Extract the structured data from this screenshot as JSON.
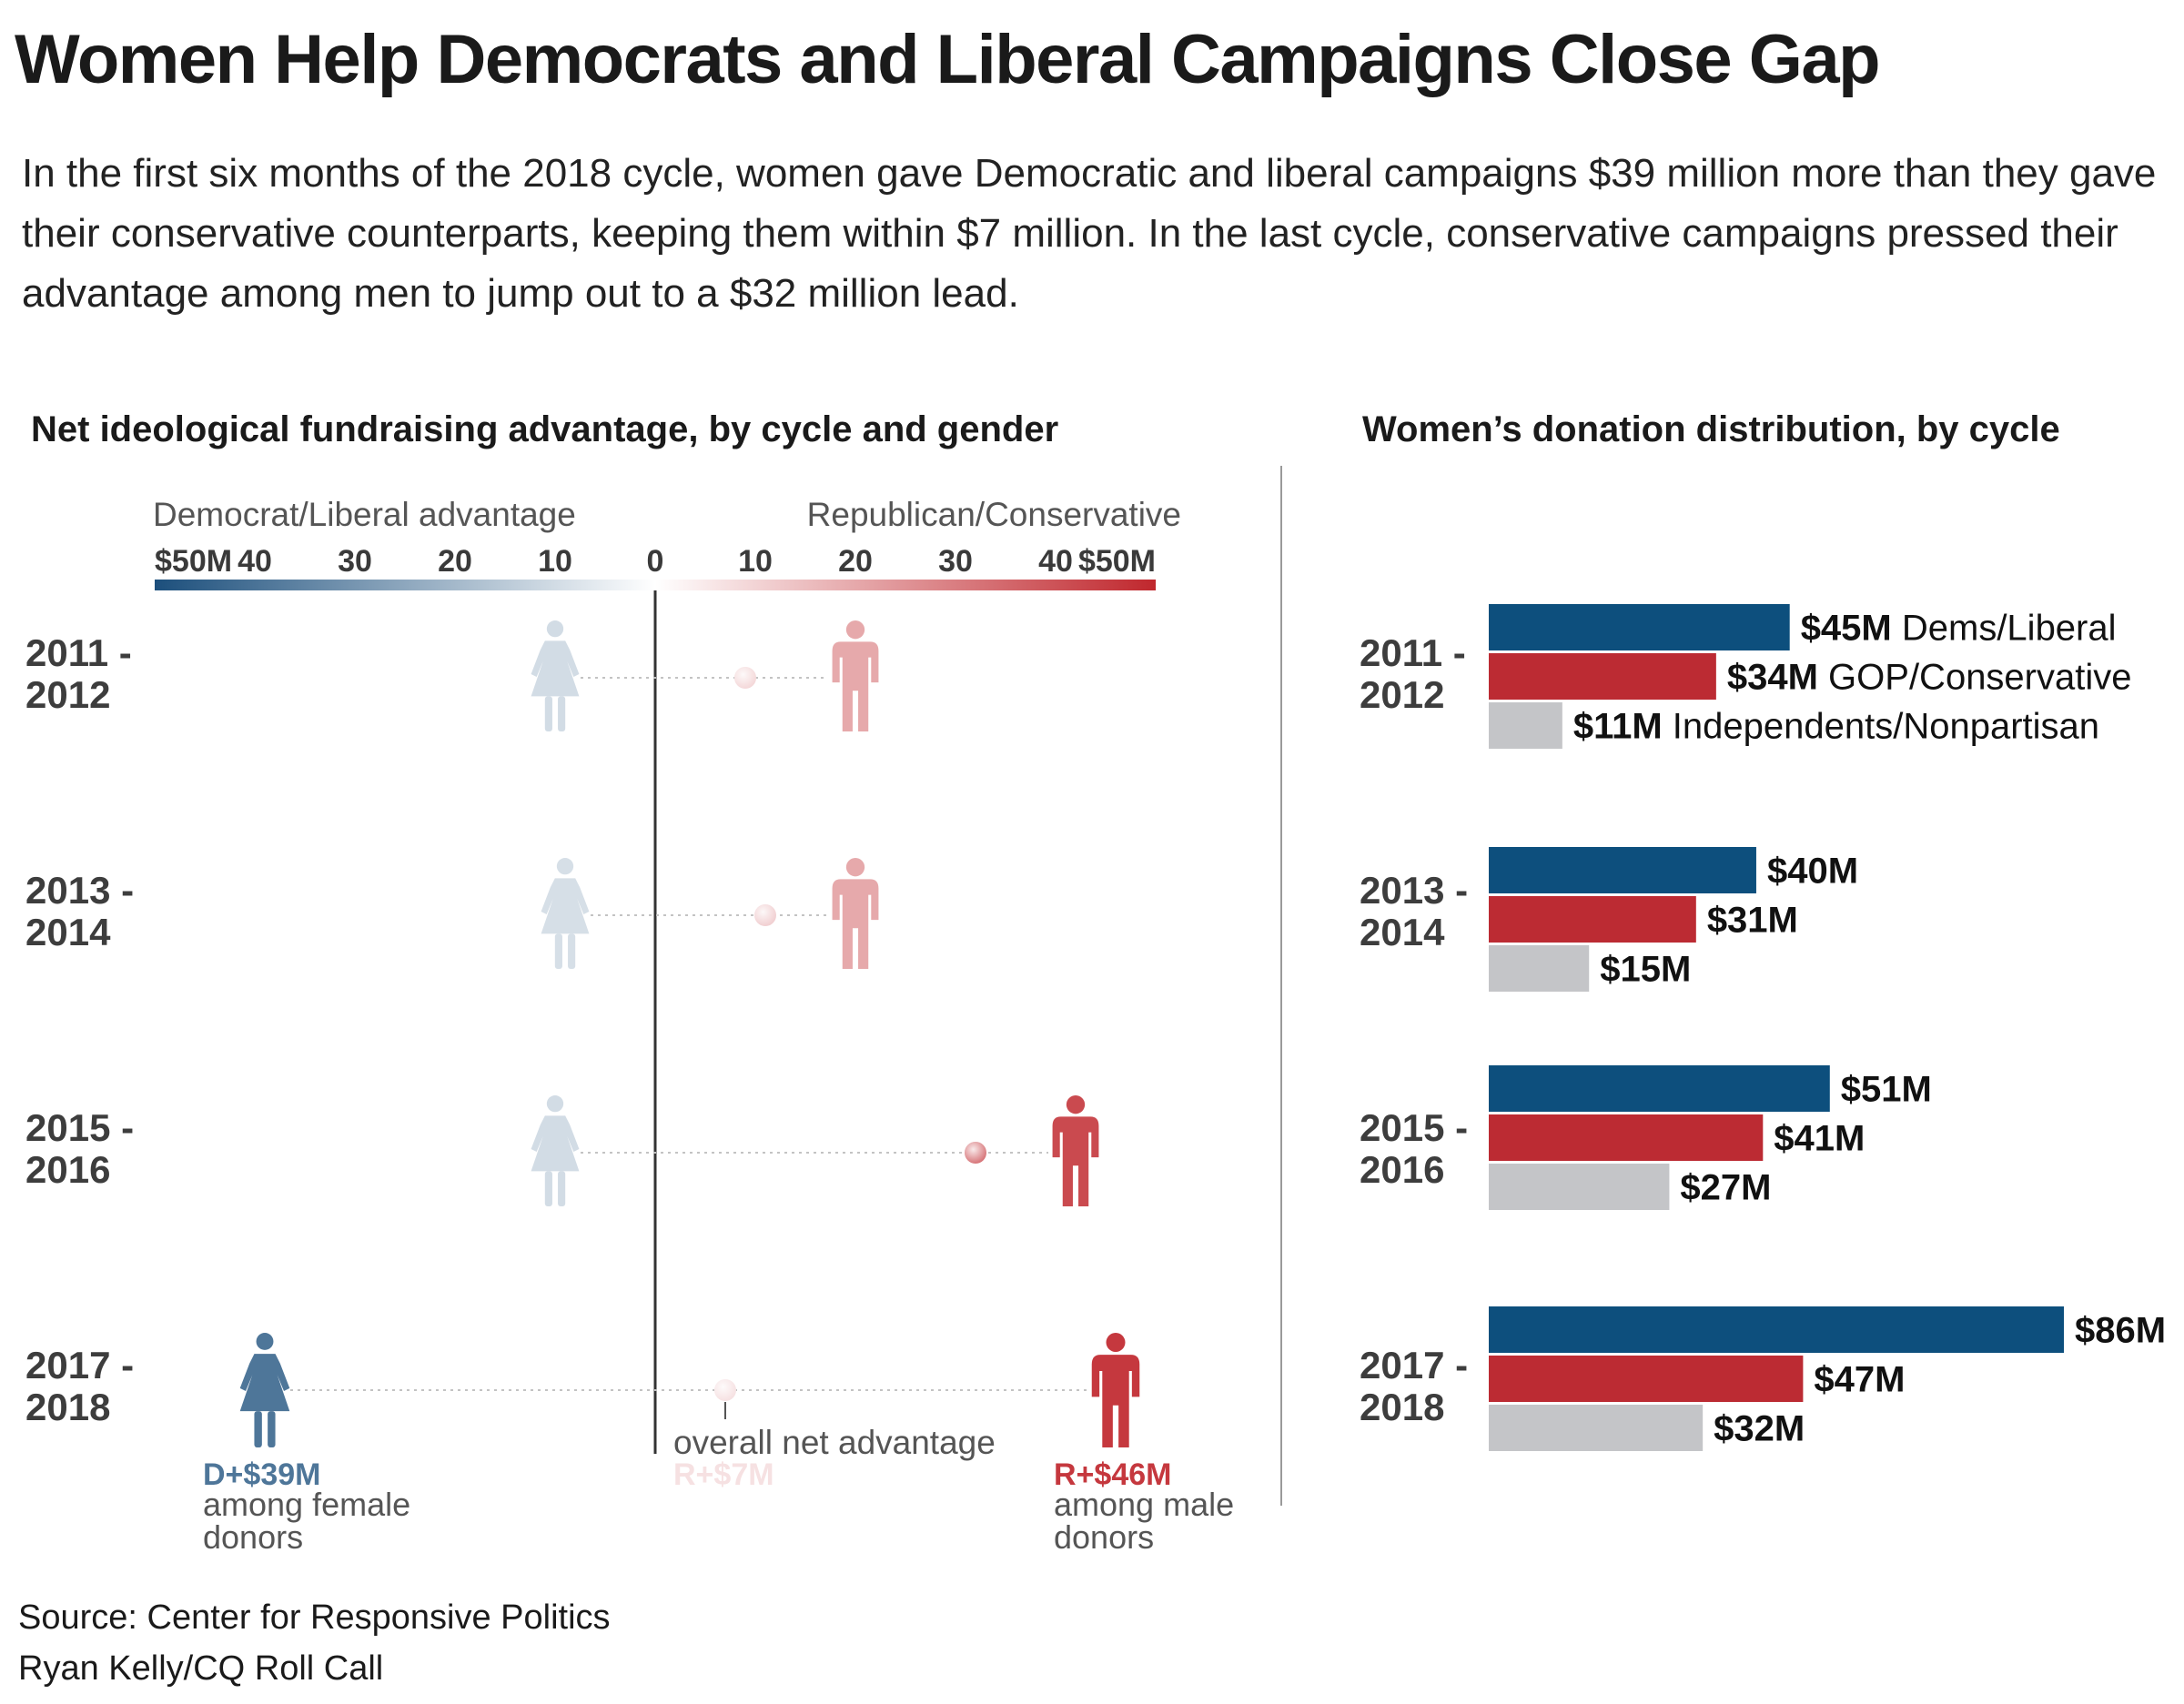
{
  "title": "Women Help Democrats and Liberal Campaigns Close Gap",
  "subtitle": "In the first six months of the 2018 cycle, women gave Democratic and liberal campaigns $39 million more than they gave their conservative counterparts, keeping them within $7 million. In the last cycle, conservative campaigns pressed their advantage among men to jump out to a $32 million lead.",
  "chart_data": [
    {
      "type": "scatter",
      "title": "Net ideological fundraising advantage, by cycle and gender",
      "scale": {
        "left_label": "Democrat/Liberal advantage",
        "right_label": "Republican/Conservative",
        "ticks": [
          "$50M",
          "40",
          "30",
          "20",
          "10",
          "0",
          "10",
          "20",
          "30",
          "40",
          "$50M"
        ],
        "tick_values": [
          -50,
          -40,
          -30,
          -20,
          -10,
          0,
          10,
          20,
          30,
          40,
          50
        ],
        "xlim": [
          -50,
          50
        ],
        "color_low": "#1c4f7c",
        "color_mid": "#ffffff",
        "color_high": "#c0272d"
      },
      "series_names": [
        "female",
        "overall",
        "male"
      ],
      "cycles": [
        {
          "label": "2011 -\n2012",
          "female": -10,
          "overall": 9,
          "male": 20
        },
        {
          "label": "2013 -\n2014",
          "female": -9,
          "overall": 11,
          "male": 20
        },
        {
          "label": "2015 -\n2016",
          "female": -10,
          "overall": 32,
          "male": 42
        },
        {
          "label": "2017 -\n2018",
          "female": -39,
          "overall": 7,
          "male": 46
        }
      ],
      "annotations": {
        "female_value": "D+$39M",
        "female_text": "among female\ndonors",
        "overall_text": "overall net advantage",
        "overall_value": "R+$7M",
        "male_value": "R+$46M",
        "male_text": "among male\ndonors"
      }
    },
    {
      "type": "bar",
      "orientation": "horizontal",
      "title": "Women’s donation distribution, by cycle",
      "categories": [
        "2011 -\n2012",
        "2013 -\n2014",
        "2015 -\n2016",
        "2017 -\n2018"
      ],
      "series": [
        {
          "name": "Dems/Liberal",
          "values": [
            45,
            40,
            51,
            86
          ],
          "labels": [
            "$45M",
            "$40M",
            "$51M",
            "$86M"
          ],
          "color": "#0d4f7d"
        },
        {
          "name": "GOP/Conservative",
          "values": [
            34,
            31,
            41,
            47
          ],
          "labels": [
            "$34M",
            "$31M",
            "$41M",
            "$47M"
          ],
          "color": "#bc2b33"
        },
        {
          "name": "Independents/Nonpartisan",
          "values": [
            11,
            15,
            27,
            32
          ],
          "labels": [
            "$11M",
            "$15M",
            "$27M",
            "$32M"
          ],
          "color": "#c4c5c8"
        }
      ],
      "series_names_shown_on": 0,
      "xlim": [
        0,
        86
      ]
    }
  ],
  "source_lines": [
    "Source: Center for Responsive Politics",
    "Ryan Kelly/CQ Roll Call"
  ]
}
